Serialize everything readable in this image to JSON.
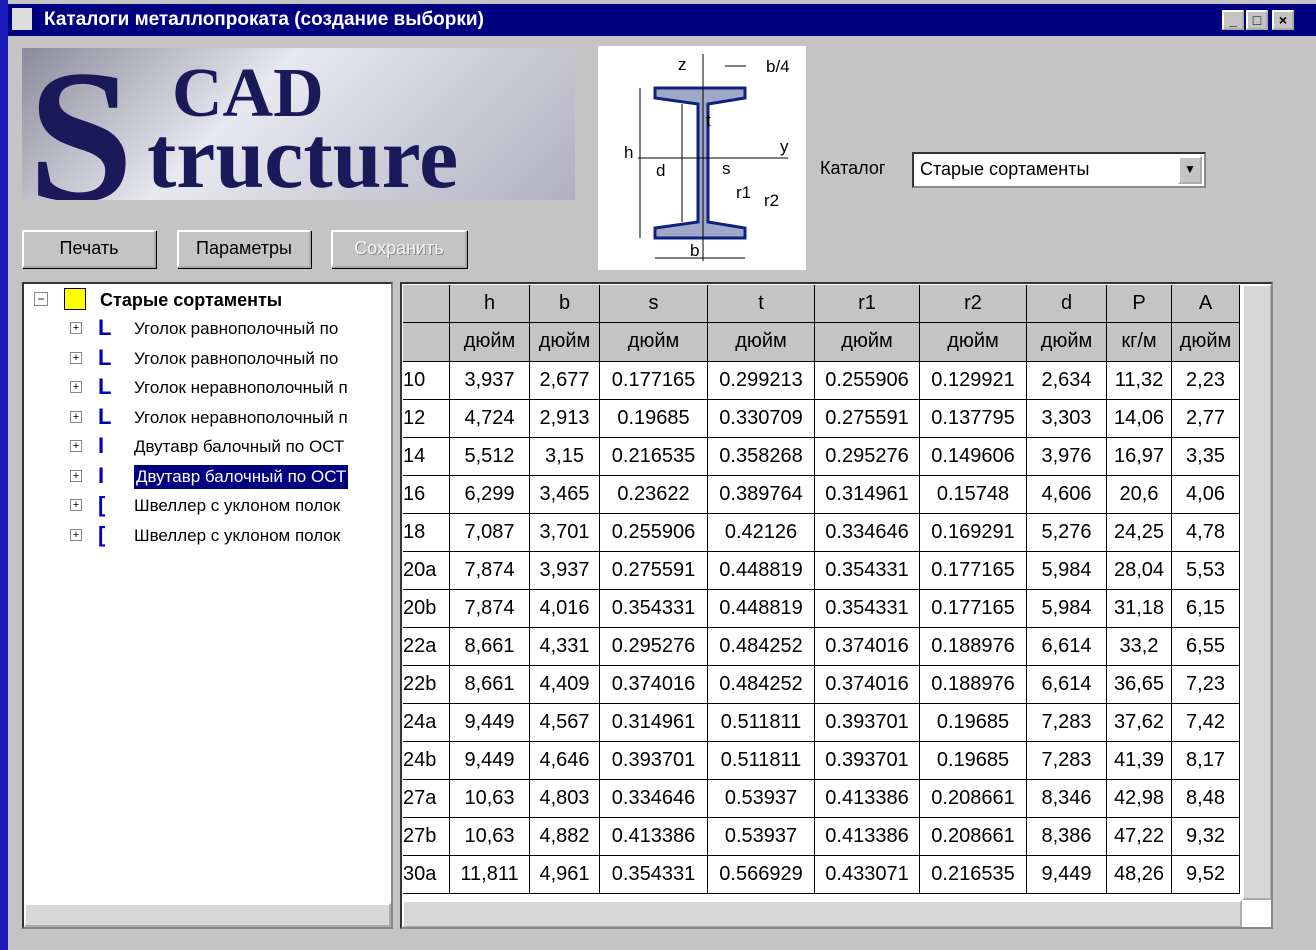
{
  "window": {
    "title": "Каталоги металлопроката (создание выборки)"
  },
  "logo": {
    "big": "S",
    "top": "CAD",
    "bottom": "tructure"
  },
  "buttons": [
    "Печать",
    "Параметры",
    "Сохранить"
  ],
  "diagram": {
    "labels": [
      "z",
      "b/4",
      "t",
      "y",
      "h",
      "d",
      "s",
      "r1",
      "r2",
      "b"
    ]
  },
  "catalog": {
    "label": "Каталог",
    "value": "Старые сортаменты"
  },
  "tree": {
    "root": "Старые сортаменты",
    "items": [
      "Уголок равнополочный по",
      "Уголок равнополочный по",
      "Уголок неравнополочный п",
      "Уголок неравнополочный п",
      "Двутавр балочный по ОСТ",
      "Двутавр балочный по ОСТ",
      "Швеллер с уклоном полок",
      "Швеллер с уклоном полок"
    ]
  },
  "table": {
    "headers": [
      "h",
      "b",
      "s",
      "t",
      "r1",
      "r2",
      "d",
      "P",
      "A"
    ],
    "units": [
      "дюйм",
      "дюйм",
      "дюйм",
      "дюйм",
      "дюйм",
      "дюйм",
      "дюйм",
      "кг/м",
      "дюйм"
    ],
    "rows": [
      [
        "10",
        "3,937",
        "2,677",
        "0.177165",
        "0.299213",
        "0.255906",
        "0.129921",
        "2,634",
        "11,32",
        "2,23"
      ],
      [
        "12",
        "4,724",
        "2,913",
        "0.19685",
        "0.330709",
        "0.275591",
        "0.137795",
        "3,303",
        "14,06",
        "2,77"
      ],
      [
        "14",
        "5,512",
        "3,15",
        "0.216535",
        "0.358268",
        "0.295276",
        "0.149606",
        "3,976",
        "16,97",
        "3,35"
      ],
      [
        "16",
        "6,299",
        "3,465",
        "0.23622",
        "0.389764",
        "0.314961",
        "0.15748",
        "4,606",
        "20,6",
        "4,06"
      ],
      [
        "18",
        "7,087",
        "3,701",
        "0.255906",
        "0.42126",
        "0.334646",
        "0.169291",
        "5,276",
        "24,25",
        "4,78"
      ],
      [
        "20a",
        "7,874",
        "3,937",
        "0.275591",
        "0.448819",
        "0.354331",
        "0.177165",
        "5,984",
        "28,04",
        "5,53"
      ],
      [
        "20b",
        "7,874",
        "4,016",
        "0.354331",
        "0.448819",
        "0.354331",
        "0.177165",
        "5,984",
        "31,18",
        "6,15"
      ],
      [
        "22a",
        "8,661",
        "4,331",
        "0.295276",
        "0.484252",
        "0.374016",
        "0.188976",
        "6,614",
        "33,2",
        "6,55"
      ],
      [
        "22b",
        "8,661",
        "4,409",
        "0.374016",
        "0.484252",
        "0.374016",
        "0.188976",
        "6,614",
        "36,65",
        "7,23"
      ],
      [
        "24a",
        "9,449",
        "4,567",
        "0.314961",
        "0.511811",
        "0.393701",
        "0.19685",
        "7,283",
        "37,62",
        "7,42"
      ],
      [
        "24b",
        "9,449",
        "4,646",
        "0.393701",
        "0.511811",
        "0.393701",
        "0.19685",
        "7,283",
        "41,39",
        "8,17"
      ],
      [
        "27a",
        "10,63",
        "4,803",
        "0.334646",
        "0.53937",
        "0.413386",
        "0.208661",
        "8,346",
        "42,98",
        "8,48"
      ],
      [
        "27b",
        "10,63",
        "4,882",
        "0.413386",
        "0.53937",
        "0.413386",
        "0.208661",
        "8,386",
        "47,22",
        "9,32"
      ],
      [
        "30a",
        "11,811",
        "4,961",
        "0.354331",
        "0.566929",
        "0.433071",
        "0.216535",
        "9,449",
        "48,26",
        "9,52"
      ]
    ]
  }
}
